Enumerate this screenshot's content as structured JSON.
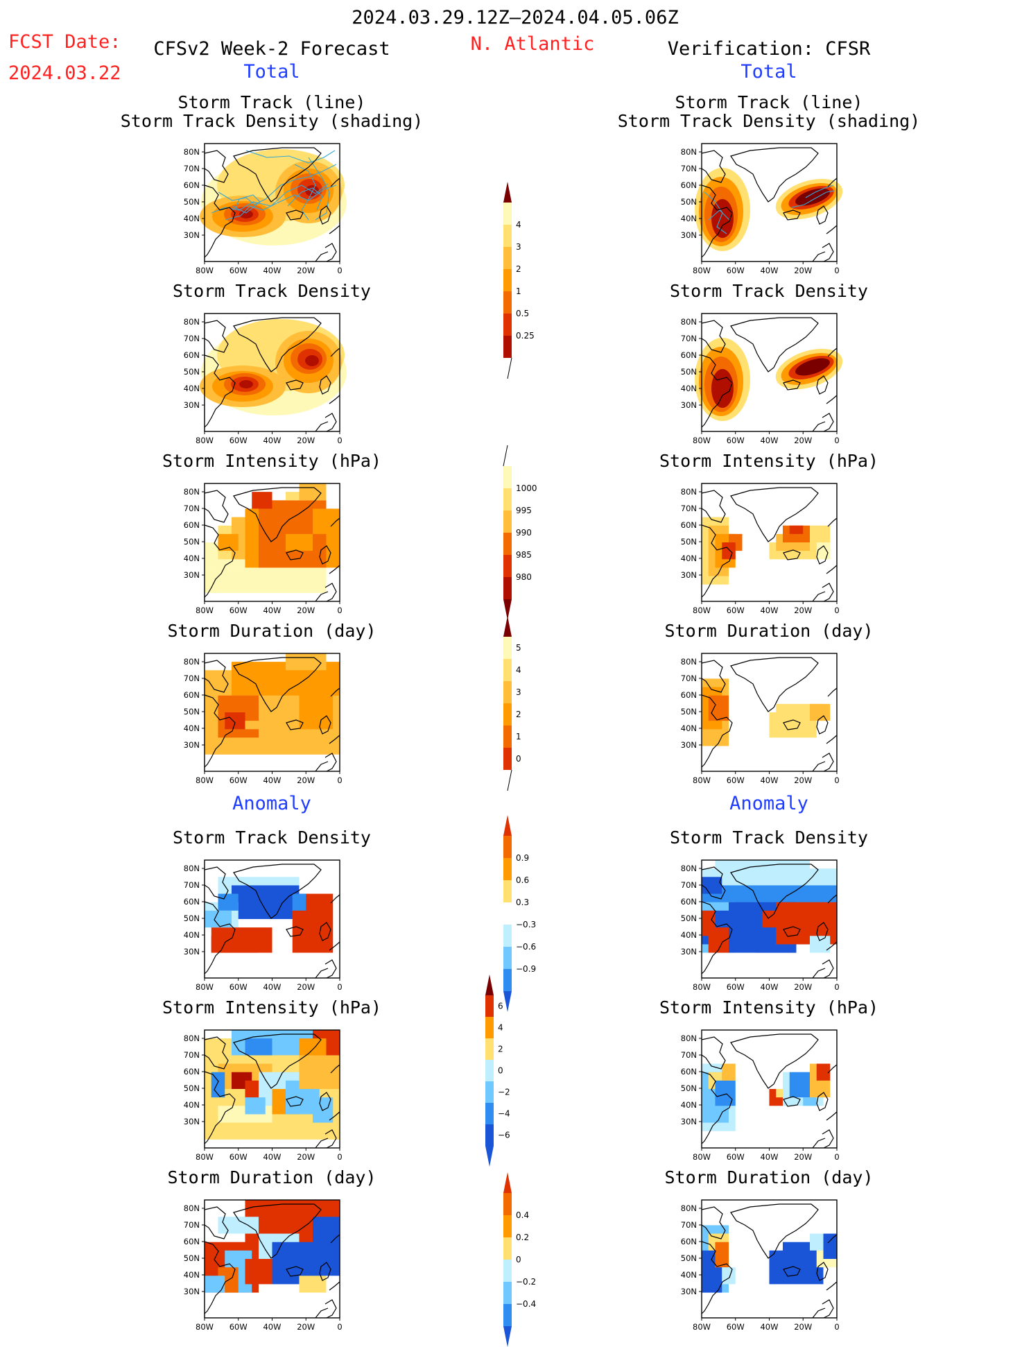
{
  "header": {
    "period": "2024.03.29.12Z–2024.04.05.06Z",
    "fcst_label": "FCST Date:",
    "fcst_date": "2024.03.22",
    "left_title": "CFSv2 Week-2 Forecast",
    "region": "N. Atlantic",
    "right_title": "Verification: CFSR",
    "total_label": "Total",
    "anomaly_label": "Anomaly"
  },
  "panel_titles": {
    "track_line": "Storm Track (line)",
    "track_shading": "Storm Track Density (shading)",
    "density": "Storm Track Density",
    "intensity": "Storm Intensity (hPa)",
    "duration": "Storm Duration (day)"
  },
  "axes": {
    "lat_ticks": [
      "80N",
      "70N",
      "60N",
      "50N",
      "40N",
      "30N"
    ],
    "lon_ticks": [
      "80W",
      "60W",
      "40W",
      "20W",
      "0"
    ]
  },
  "colors": {
    "warm": [
      "#fff9b8",
      "#ffe070",
      "#ffbd3a",
      "#ff9a00",
      "#f26a00",
      "#e03200",
      "#b00f00",
      "#7a0000"
    ],
    "cool": [
      "#bfeeff",
      "#6fc8ff",
      "#2f8cf0",
      "#1a55d8"
    ],
    "track_line": "#35a8d8"
  },
  "colorbars": {
    "track_density": [
      "4",
      "3",
      "2",
      "1",
      "0.5",
      "0.25"
    ],
    "intensity": [
      "1000",
      "995",
      "990",
      "985",
      "980"
    ],
    "duration": [
      "5",
      "4",
      "3",
      "2",
      "1",
      "0"
    ],
    "density_anomaly": [
      "0.9",
      "0.6",
      "0.3",
      "−0.3",
      "−0.6",
      "−0.9"
    ],
    "intensity_anomaly": [
      "6",
      "4",
      "2",
      "0",
      "−2",
      "−4",
      "−6"
    ],
    "duration_anomaly": [
      "0.4",
      "0.2",
      "0",
      "−0.2",
      "−0.4"
    ]
  }
}
